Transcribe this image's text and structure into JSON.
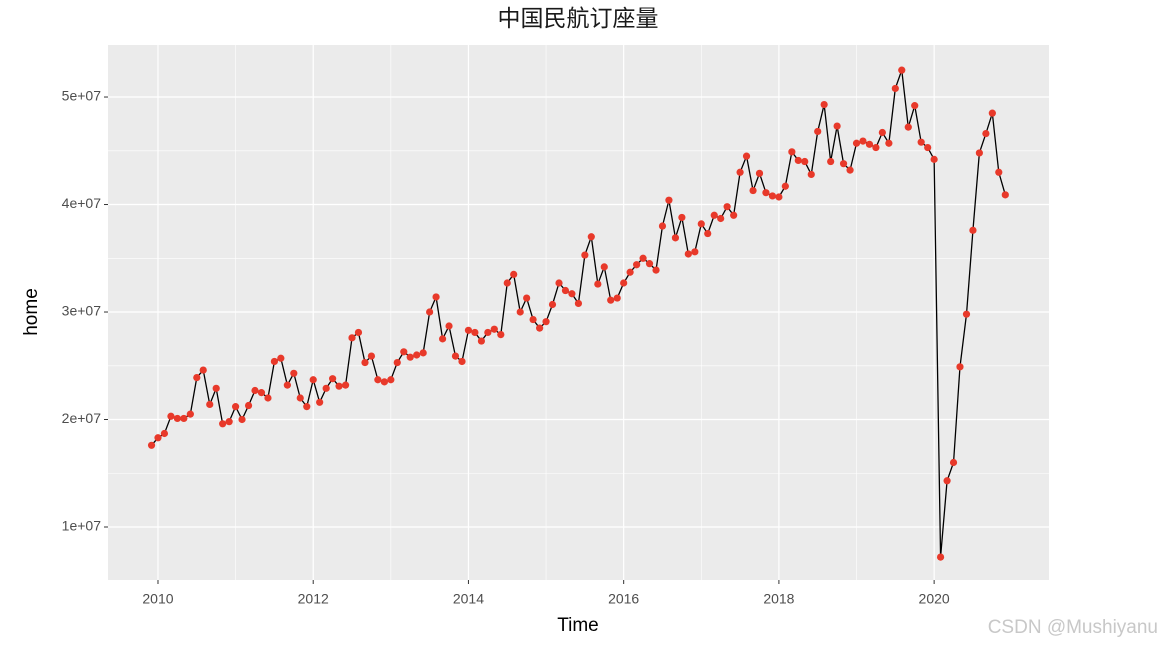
{
  "chart_data": {
    "type": "line",
    "title": "中国民航订座量",
    "x_label": "Time",
    "y_label": "home",
    "x": [
      2009.917,
      2010,
      2010.083,
      2010.167,
      2010.25,
      2010.333,
      2010.417,
      2010.5,
      2010.583,
      2010.667,
      2010.75,
      2010.833,
      2010.917,
      2011,
      2011.083,
      2011.167,
      2011.25,
      2011.333,
      2011.417,
      2011.5,
      2011.583,
      2011.667,
      2011.75,
      2011.833,
      2011.917,
      2012,
      2012.083,
      2012.167,
      2012.25,
      2012.333,
      2012.417,
      2012.5,
      2012.583,
      2012.667,
      2012.75,
      2012.833,
      2012.917,
      2013,
      2013.083,
      2013.167,
      2013.25,
      2013.333,
      2013.417,
      2013.5,
      2013.583,
      2013.667,
      2013.75,
      2013.833,
      2013.917,
      2014,
      2014.083,
      2014.167,
      2014.25,
      2014.333,
      2014.417,
      2014.5,
      2014.583,
      2014.667,
      2014.75,
      2014.833,
      2014.917,
      2015,
      2015.083,
      2015.167,
      2015.25,
      2015.333,
      2015.417,
      2015.5,
      2015.583,
      2015.667,
      2015.75,
      2015.833,
      2015.917,
      2016,
      2016.083,
      2016.167,
      2016.25,
      2016.333,
      2016.417,
      2016.5,
      2016.583,
      2016.667,
      2016.75,
      2016.833,
      2016.917,
      2017,
      2017.083,
      2017.167,
      2017.25,
      2017.333,
      2017.417,
      2017.5,
      2017.583,
      2017.667,
      2017.75,
      2017.833,
      2017.917,
      2018,
      2018.083,
      2018.167,
      2018.25,
      2018.333,
      2018.417,
      2018.5,
      2018.583,
      2018.667,
      2018.75,
      2018.833,
      2018.917,
      2019,
      2019.083,
      2019.167,
      2019.25,
      2019.333,
      2019.417,
      2019.5,
      2019.583,
      2019.667,
      2019.75,
      2019.833,
      2019.917,
      2020,
      2020.083,
      2020.167,
      2020.25,
      2020.333,
      2020.417,
      2020.5,
      2020.583,
      2020.667,
      2020.75,
      2020.833,
      2020.917
    ],
    "values": [
      17600000,
      18300000,
      18700000,
      20300000,
      20100000,
      20100000,
      20500000,
      23900000,
      24600000,
      21400000,
      22900000,
      19600000,
      19800000,
      21200000,
      20000000,
      21300000,
      22700000,
      22500000,
      22000000,
      25400000,
      25700000,
      23200000,
      24300000,
      22000000,
      21200000,
      23700000,
      21600000,
      22900000,
      23800000,
      23100000,
      23200000,
      27600000,
      28100000,
      25300000,
      25900000,
      23700000,
      23500000,
      23700000,
      25300000,
      26300000,
      25800000,
      26000000,
      26200000,
      30000000,
      31400000,
      27500000,
      28700000,
      25900000,
      25400000,
      28300000,
      28100000,
      27300000,
      28100000,
      28400000,
      27900000,
      32700000,
      33500000,
      30000000,
      31300000,
      29300000,
      28500000,
      29100000,
      30700000,
      32700000,
      32000000,
      31700000,
      30800000,
      35300000,
      37000000,
      32600000,
      34200000,
      31100000,
      31300000,
      32700000,
      33700000,
      34400000,
      35000000,
      34500000,
      33900000,
      38000000,
      40400000,
      36900000,
      38800000,
      35400000,
      35600000,
      38200000,
      37300000,
      39000000,
      38700000,
      39800000,
      39000000,
      43000000,
      44500000,
      41300000,
      42900000,
      41100000,
      40800000,
      40700000,
      41700000,
      44900000,
      44100000,
      44000000,
      42800000,
      46800000,
      49300000,
      44000000,
      47300000,
      43800000,
      43200000,
      45700000,
      45900000,
      45600000,
      45300000,
      46700000,
      45700000,
      50800000,
      52500000,
      47200000,
      49200000,
      45800000,
      45300000,
      44200000,
      7200000,
      14300000,
      16000000,
      24900000,
      29800000,
      37600000,
      44800000,
      46600000,
      48500000,
      43000000,
      40900000
    ],
    "line_color": "#000000",
    "point_color": "#e8392a",
    "xlim": [
      2009.356,
      2021.48
    ],
    "xticks": [
      2010,
      2012,
      2014,
      2016,
      2018,
      2020
    ],
    "ylim": [
      5070000,
      54840000
    ],
    "yticks": [
      {
        "value": 10000000,
        "label": "1e+07"
      },
      {
        "value": 20000000,
        "label": "2e+07"
      },
      {
        "value": 30000000,
        "label": "3e+07"
      },
      {
        "value": 40000000,
        "label": "4e+07"
      },
      {
        "value": 50000000,
        "label": "5e+07"
      }
    ],
    "grid": true
  },
  "watermark": "CSDN @Mushiyanu"
}
